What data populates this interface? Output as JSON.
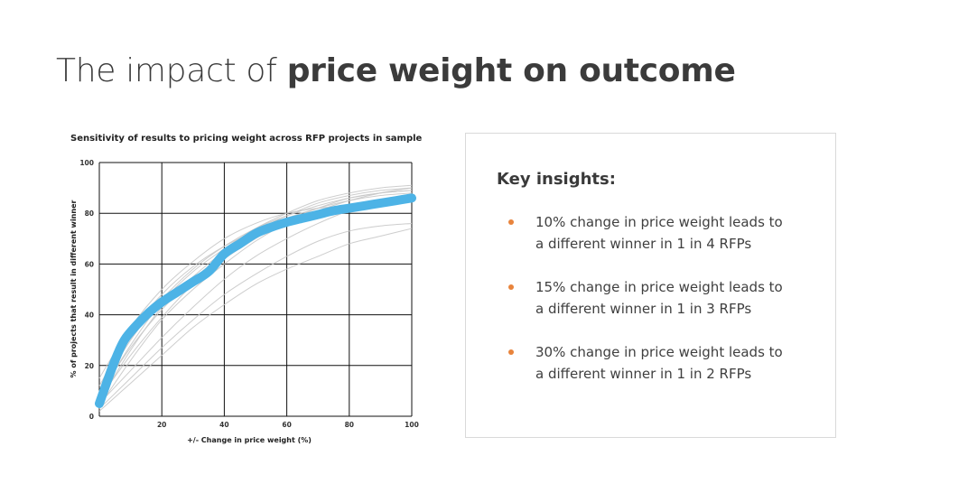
{
  "slide": {
    "title_regular": "The impact of ",
    "title_bold": "price weight on outcome"
  },
  "insights": {
    "heading": "Key insights:",
    "bullet_color": "#e8843c",
    "items": [
      {
        "line1": "10% change in price weight leads to",
        "line2": "a different winner in 1 in 4 RFPs"
      },
      {
        "line1": "15% change in price weight leads to",
        "line2": "a different winner in 1 in 3 RFPs"
      },
      {
        "line1": "30% change in price weight leads to",
        "line2": "a different winner in 1 in 2 RFPs"
      }
    ]
  },
  "chart_data": {
    "type": "line",
    "title": "Sensitivity of results to pricing weight across RFP projects in sample",
    "xlabel": "+/- Change in price weight (%)",
    "ylabel": "% of  projects that result in different winner",
    "xlim": [
      0,
      100
    ],
    "ylim": [
      0,
      100
    ],
    "xticks": [
      20,
      40,
      60,
      80,
      100
    ],
    "yticks": [
      0,
      20,
      40,
      60,
      80,
      100
    ],
    "grid": true,
    "colors": {
      "highlight": "#4db3e6",
      "individual": "#c8c8c8",
      "grid": "#111111"
    },
    "series": [
      {
        "role": "average",
        "x": [
          0,
          2,
          5,
          8,
          12,
          16,
          20,
          25,
          30,
          35,
          40,
          45,
          50,
          55,
          60,
          65,
          70,
          75,
          80,
          85,
          90,
          95,
          100
        ],
        "y": [
          5,
          12,
          22,
          30,
          36,
          41,
          45,
          49,
          53,
          57,
          64,
          68,
          72,
          74.5,
          76.5,
          78,
          79.5,
          81,
          82,
          83,
          84,
          85,
          86
        ]
      },
      {
        "role": "project",
        "x": [
          0,
          10,
          20,
          30,
          40,
          50,
          60,
          70,
          80,
          90,
          100
        ],
        "y": [
          8,
          28,
          45,
          57,
          66,
          74,
          80,
          85,
          88,
          90,
          91
        ]
      },
      {
        "role": "project",
        "x": [
          0,
          10,
          20,
          30,
          40,
          50,
          60,
          70,
          80,
          90,
          100
        ],
        "y": [
          6,
          26,
          43,
          55,
          65,
          73,
          79,
          84,
          87,
          89,
          90
        ]
      },
      {
        "role": "project",
        "x": [
          0,
          10,
          20,
          30,
          40,
          50,
          60,
          70,
          80,
          90,
          100
        ],
        "y": [
          10,
          30,
          46,
          58,
          67,
          74,
          79,
          83,
          86,
          88,
          89
        ]
      },
      {
        "role": "project",
        "x": [
          0,
          10,
          20,
          30,
          40,
          50,
          60,
          70,
          80,
          90,
          100
        ],
        "y": [
          4,
          22,
          38,
          50,
          60,
          69,
          76,
          81,
          85,
          88,
          90
        ]
      },
      {
        "role": "project",
        "x": [
          0,
          10,
          20,
          30,
          40,
          50,
          60,
          70,
          80,
          90,
          100
        ],
        "y": [
          12,
          33,
          48,
          59,
          67,
          73,
          78,
          81,
          83,
          85,
          86
        ]
      },
      {
        "role": "project",
        "x": [
          0,
          10,
          20,
          30,
          40,
          50,
          60,
          70,
          80,
          90,
          100
        ],
        "y": [
          7,
          24,
          39,
          52,
          62,
          70,
          77,
          82,
          86,
          88,
          89
        ]
      },
      {
        "role": "project",
        "x": [
          0,
          10,
          20,
          30,
          40,
          50,
          60,
          70,
          80,
          90,
          100
        ],
        "y": [
          5,
          18,
          31,
          43,
          54,
          63,
          70,
          76,
          81,
          84,
          86
        ]
      },
      {
        "role": "project",
        "x": [
          0,
          10,
          20,
          30,
          40,
          50,
          60,
          70,
          80,
          90,
          100
        ],
        "y": [
          3,
          15,
          27,
          38,
          48,
          56,
          63,
          69,
          73,
          75,
          76
        ]
      },
      {
        "role": "project",
        "x": [
          0,
          10,
          20,
          30,
          40,
          50,
          60,
          70,
          80,
          90,
          100
        ],
        "y": [
          2,
          13,
          24,
          35,
          44,
          52,
          58,
          63,
          68,
          71,
          74
        ]
      },
      {
        "role": "project",
        "x": [
          0,
          10,
          20,
          30,
          40,
          50,
          60,
          70,
          80,
          90,
          100
        ],
        "y": [
          15,
          35,
          50,
          61,
          70,
          76,
          80,
          82,
          83,
          84,
          85
        ]
      },
      {
        "role": "project",
        "x": [
          0,
          10,
          20,
          30,
          40,
          50,
          60,
          70,
          80,
          90,
          100
        ],
        "y": [
          9,
          27,
          42,
          54,
          64,
          72,
          78,
          82,
          85,
          87,
          88
        ]
      }
    ]
  }
}
